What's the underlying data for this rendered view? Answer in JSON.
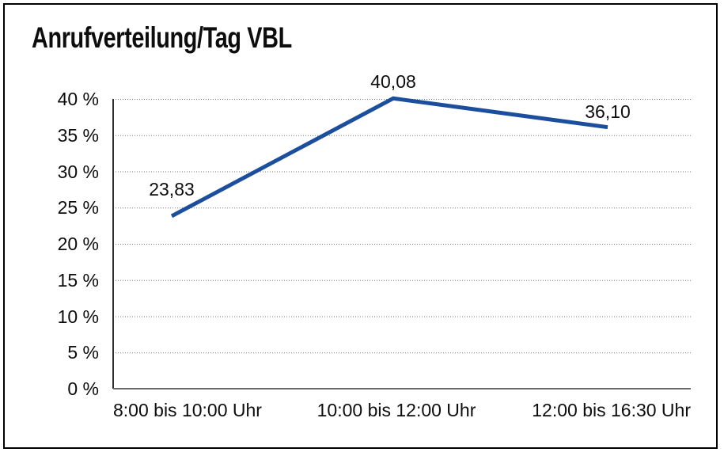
{
  "chart_data": {
    "type": "line",
    "title": "Anrufverteilung/Tag VBL",
    "categories": [
      "8:00 bis 10:00 Uhr",
      "10:00 bis 12:00 Uhr",
      "12:00 bis 16:30 Uhr"
    ],
    "values": [
      23.83,
      40.08,
      36.1
    ],
    "point_labels": [
      "23,83",
      "40,08",
      "36,10"
    ],
    "ytick_labels": [
      "40 %",
      "35 %",
      "30 %",
      "25 %",
      "20 %",
      "15 %",
      "10 %",
      "5 %",
      "0 %"
    ],
    "ylim": [
      0,
      40
    ],
    "ytick_step": 5,
    "xlabel": "",
    "ylabel": "",
    "grid": "horizontal-dotted",
    "legend": "none",
    "colors": {
      "line": "#1b4f9e",
      "grid": "#7a7a7a",
      "axis_y": "#2e2e2e",
      "axis_x": "#6b6b6b",
      "border": "#000000",
      "text": "#0d0d0d"
    }
  }
}
